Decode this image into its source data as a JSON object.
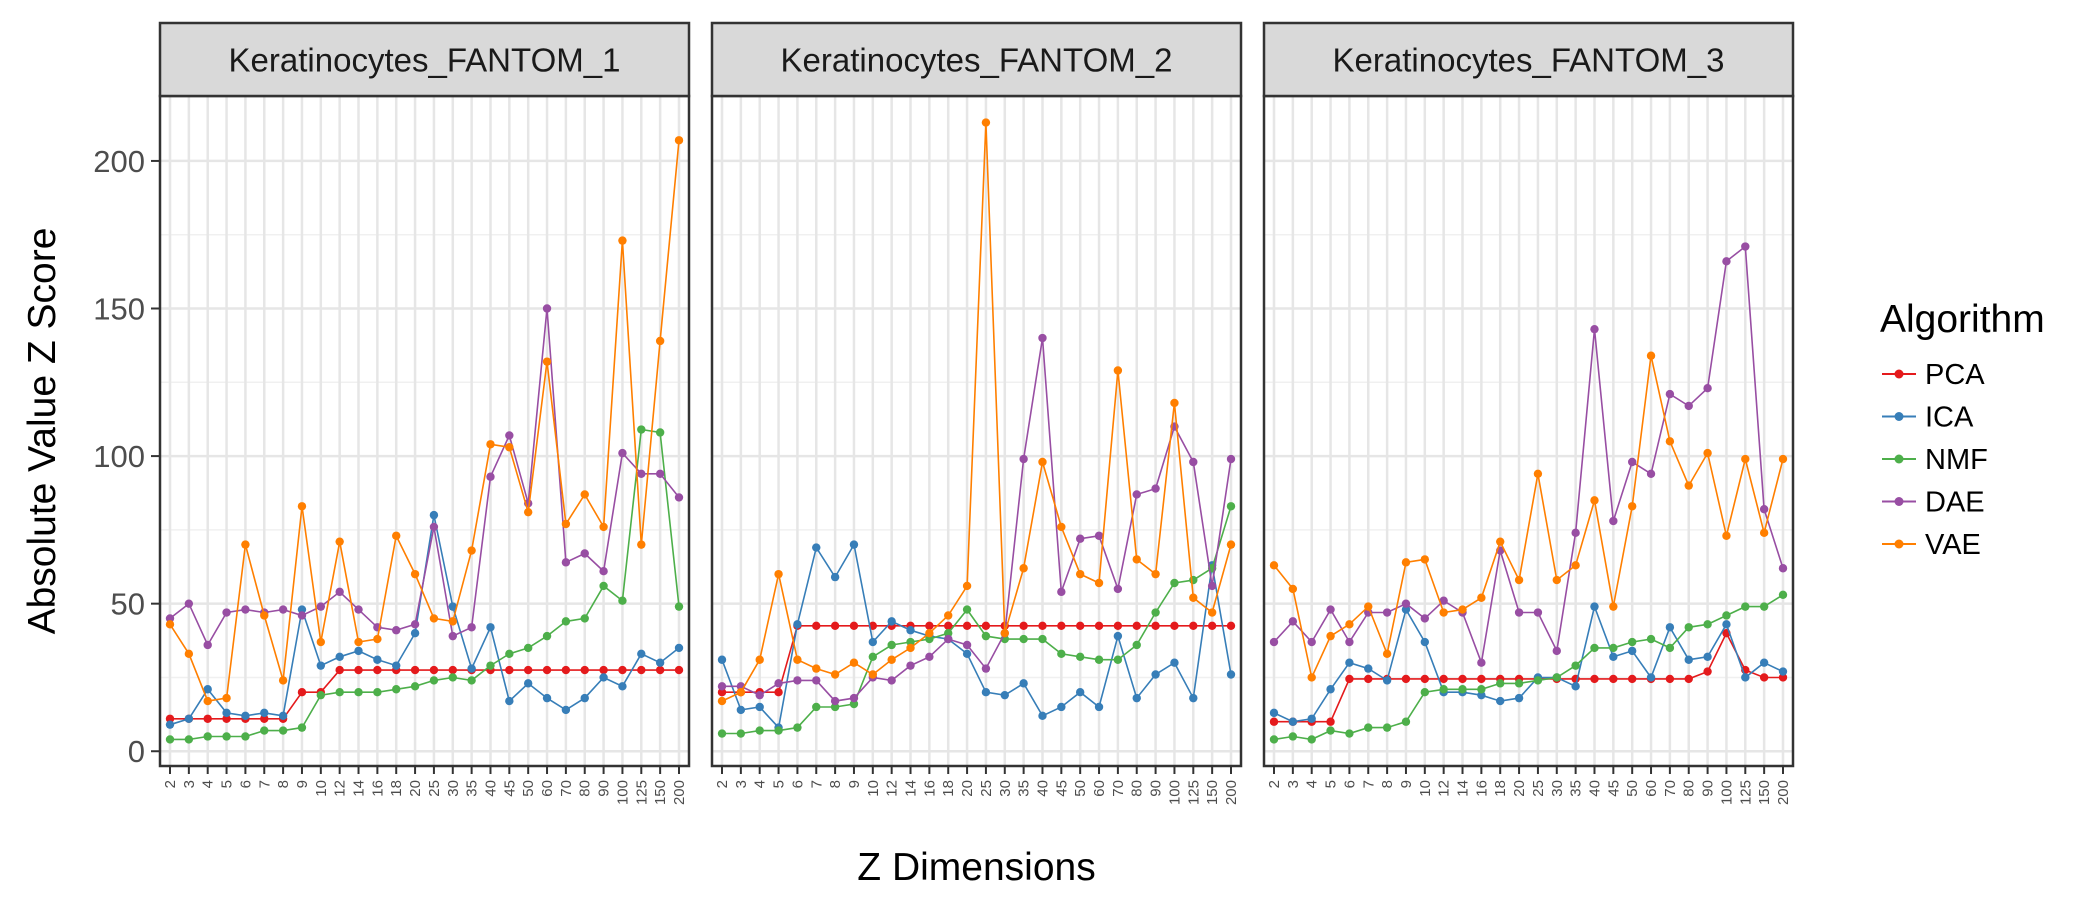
{
  "chart_data": {
    "type": "line",
    "xlabel": "Z Dimensions",
    "ylabel": "Absolute Value Z Score",
    "ylim": [
      -5,
      222
    ],
    "yticks": [
      0,
      50,
      100,
      150,
      200
    ],
    "x_categories": [
      "2",
      "3",
      "4",
      "5",
      "6",
      "7",
      "8",
      "9",
      "10",
      "12",
      "14",
      "16",
      "18",
      "20",
      "25",
      "30",
      "35",
      "40",
      "45",
      "50",
      "60",
      "70",
      "80",
      "90",
      "100",
      "125",
      "150",
      "200"
    ],
    "grid": true,
    "legend": {
      "title": "Algorithm",
      "position": "right",
      "entries": [
        {
          "name": "PCA",
          "color": "#e41a1c"
        },
        {
          "name": "ICA",
          "color": "#377eb8"
        },
        {
          "name": "NMF",
          "color": "#4daf4a"
        },
        {
          "name": "DAE",
          "color": "#984ea3"
        },
        {
          "name": "VAE",
          "color": "#ff7f00"
        }
      ]
    },
    "panels": [
      {
        "title": "Keratinocytes_FANTOM_1",
        "series": [
          {
            "name": "PCA",
            "values": [
              11,
              11,
              11,
              11,
              11,
              11,
              11,
              20,
              20,
              27.5,
              27.5,
              27.5,
              27.5,
              27.5,
              27.5,
              27.5,
              27.5,
              27.5,
              27.5,
              27.5,
              27.5,
              27.5,
              27.5,
              27.5,
              27.5,
              27.5,
              27.5,
              27.5
            ]
          },
          {
            "name": "ICA",
            "values": [
              9,
              11,
              21,
              13,
              12,
              13,
              12,
              48,
              29,
              32,
              34,
              31,
              29,
              40,
              80,
              49,
              28,
              42,
              17,
              23,
              18,
              14,
              18,
              25,
              22,
              33,
              30,
              35
            ]
          },
          {
            "name": "NMF",
            "values": [
              4,
              4,
              5,
              5,
              5,
              7,
              7,
              8,
              19,
              20,
              20,
              20,
              21,
              22,
              24,
              25,
              24,
              29,
              33,
              35,
              39,
              44,
              45,
              56,
              51,
              109,
              108,
              49
            ]
          },
          {
            "name": "DAE",
            "values": [
              45,
              50,
              36,
              47,
              48,
              47,
              48,
              46,
              49,
              54,
              48,
              42,
              41,
              43,
              76,
              39,
              42,
              93,
              107,
              84,
              150,
              64,
              67,
              61,
              101,
              94,
              94,
              86
            ]
          },
          {
            "name": "VAE",
            "values": [
              43,
              33,
              17,
              18,
              70,
              46,
              24,
              83,
              37,
              71,
              37,
              38,
              73,
              60,
              45,
              44,
              68,
              104,
              103,
              81,
              132,
              77,
              87,
              76,
              173,
              70,
              139,
              207
            ]
          }
        ]
      },
      {
        "title": "Keratinocytes_FANTOM_2",
        "series": [
          {
            "name": "PCA",
            "values": [
              20,
              20,
              20,
              20,
              42.5,
              42.5,
              42.5,
              42.5,
              42.5,
              42.5,
              42.5,
              42.5,
              42.5,
              42.5,
              42.5,
              42.5,
              42.5,
              42.5,
              42.5,
              42.5,
              42.5,
              42.5,
              42.5,
              42.5,
              42.5,
              42.5,
              42.5,
              42.5
            ]
          },
          {
            "name": "ICA",
            "values": [
              31,
              14,
              15,
              8,
              43,
              69,
              59,
              70,
              37,
              44,
              41,
              39,
              38,
              33,
              20,
              19,
              23,
              12,
              15,
              20,
              15,
              39,
              18,
              26,
              30,
              18,
              63,
              26
            ]
          },
          {
            "name": "NMF",
            "values": [
              6,
              6,
              7,
              7,
              8,
              15,
              15,
              16,
              32,
              36,
              37,
              38,
              40,
              48,
              39,
              38,
              38,
              38,
              33,
              32,
              31,
              31,
              36,
              47,
              57,
              58,
              62,
              83
            ]
          },
          {
            "name": "DAE",
            "values": [
              22,
              22,
              19,
              23,
              24,
              24,
              17,
              18,
              25,
              24,
              29,
              32,
              38,
              36,
              28,
              40,
              99,
              140,
              54,
              72,
              73,
              55,
              87,
              89,
              110,
              98,
              56,
              99
            ]
          },
          {
            "name": "VAE",
            "values": [
              17,
              20,
              31,
              60,
              31,
              28,
              26,
              30,
              26,
              31,
              35,
              40,
              46,
              56,
              213,
              40,
              62,
              98,
              76,
              60,
              57,
              129,
              65,
              60,
              118,
              52,
              47,
              70
            ]
          }
        ]
      },
      {
        "title": "Keratinocytes_FANTOM_3",
        "series": [
          {
            "name": "PCA",
            "values": [
              10,
              10,
              10,
              10,
              24.5,
              24.5,
              24.5,
              24.5,
              24.5,
              24.5,
              24.5,
              24.5,
              24.5,
              24.5,
              24.5,
              24.5,
              24.5,
              24.5,
              24.5,
              24.5,
              24.5,
              24.5,
              24.5,
              27,
              40,
              27.5,
              25,
              25
            ]
          },
          {
            "name": "ICA",
            "values": [
              13,
              10,
              11,
              21,
              30,
              28,
              24,
              48,
              37,
              20,
              20,
              19,
              17,
              18,
              25,
              25,
              22,
              49,
              32,
              34,
              25,
              42,
              31,
              32,
              43,
              25,
              30,
              27
            ]
          },
          {
            "name": "NMF",
            "values": [
              4,
              5,
              4,
              7,
              6,
              8,
              8,
              10,
              20,
              21,
              21,
              21,
              23,
              23,
              24,
              25,
              29,
              35,
              35,
              37,
              38,
              35,
              42,
              43,
              46,
              49,
              49,
              53
            ]
          },
          {
            "name": "DAE",
            "values": [
              37,
              44,
              37,
              48,
              37,
              47,
              47,
              50,
              45,
              51,
              47,
              30,
              68,
              47,
              47,
              34,
              74,
              143,
              78,
              98,
              94,
              121,
              117,
              123,
              166,
              171,
              82,
              62
            ]
          },
          {
            "name": "VAE",
            "values": [
              63,
              55,
              25,
              39,
              43,
              49,
              33,
              64,
              65,
              47,
              48,
              52,
              71,
              58,
              94,
              58,
              63,
              85,
              49,
              83,
              134,
              105,
              90,
              101,
              73,
              99,
              74,
              99
            ]
          }
        ]
      }
    ]
  }
}
